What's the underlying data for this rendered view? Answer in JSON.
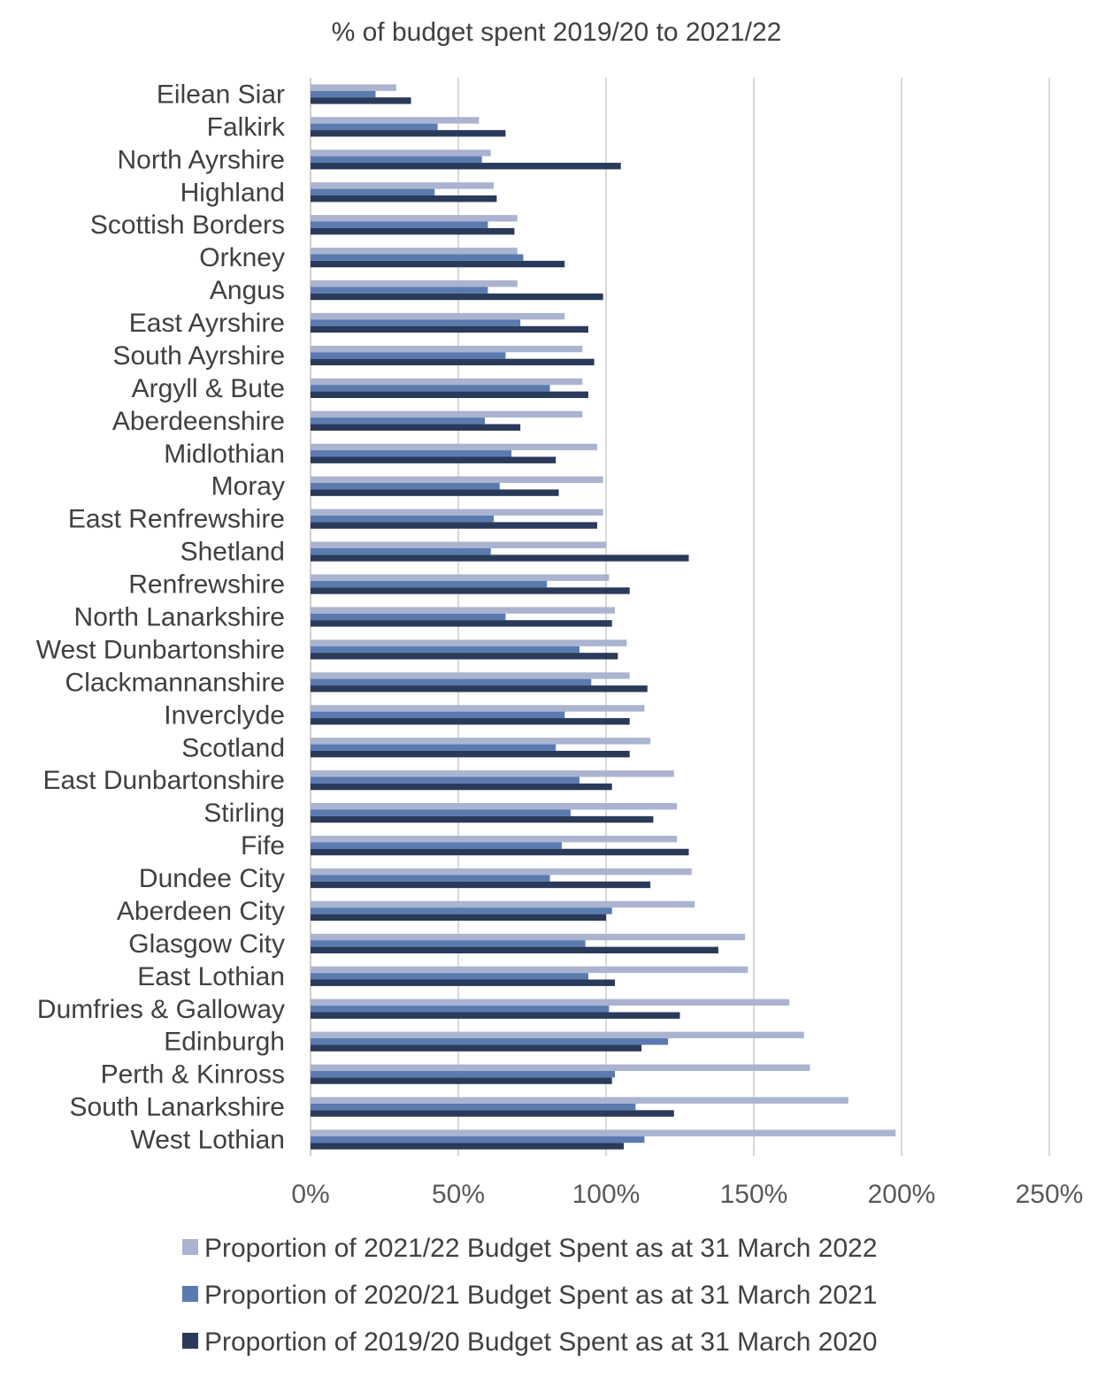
{
  "chart_data": {
    "type": "bar",
    "orientation": "horizontal",
    "title": "% of budget spent 2019/20 to 2021/22",
    "xlabel": "",
    "ylabel": "",
    "xlim": [
      0,
      2.5
    ],
    "x_ticks": [
      "0%",
      "50%",
      "100%",
      "150%",
      "200%",
      "250%"
    ],
    "grid": true,
    "legend_position": "bottom",
    "categories": [
      "Eilean Siar",
      "Falkirk",
      "North Ayrshire",
      "Highland",
      "Scottish Borders",
      "Orkney",
      "Angus",
      "East Ayrshire",
      "South Ayrshire",
      "Argyll & Bute",
      "Aberdeenshire",
      "Midlothian",
      "Moray",
      "East Renfrewshire",
      "Shetland",
      "Renfrewshire",
      "North Lanarkshire",
      "West Dunbartonshire",
      "Clackmannanshire",
      "Inverclyde",
      "Scotland",
      "East Dunbartonshire",
      "Stirling",
      "Fife",
      "Dundee City",
      "Aberdeen City",
      "Glasgow City",
      "East Lothian",
      "Dumfries & Galloway",
      "Edinburgh",
      "Perth & Kinross",
      "South Lanarkshire",
      "West Lothian"
    ],
    "series": [
      {
        "name": "Proportion of 2021/22 Budget Spent as at 31 March 2022",
        "color": "#aab4d0",
        "values": [
          0.29,
          0.57,
          0.61,
          0.62,
          0.7,
          0.7,
          0.7,
          0.86,
          0.92,
          0.92,
          0.92,
          0.97,
          0.99,
          0.99,
          1.0,
          1.01,
          1.03,
          1.07,
          1.08,
          1.13,
          1.15,
          1.23,
          1.24,
          1.24,
          1.29,
          1.3,
          1.47,
          1.48,
          1.62,
          1.67,
          1.69,
          1.82,
          1.98
        ]
      },
      {
        "name": "Proportion of 2020/21 Budget Spent as at 31 March 2021",
        "color": "#5b7bb0",
        "values": [
          0.22,
          0.43,
          0.58,
          0.42,
          0.6,
          0.72,
          0.6,
          0.71,
          0.66,
          0.81,
          0.59,
          0.68,
          0.64,
          0.62,
          0.61,
          0.8,
          0.66,
          0.91,
          0.95,
          0.86,
          0.83,
          0.91,
          0.88,
          0.85,
          0.81,
          1.02,
          0.93,
          0.94,
          1.01,
          1.21,
          1.03,
          1.1,
          1.13
        ]
      },
      {
        "name": "Proportion of 2019/20 Budget Spent as at 31 March 2020",
        "color": "#2a3a5a",
        "values": [
          0.34,
          0.66,
          1.05,
          0.63,
          0.69,
          0.86,
          0.99,
          0.94,
          0.96,
          0.94,
          0.71,
          0.83,
          0.84,
          0.97,
          1.28,
          1.08,
          1.02,
          1.04,
          1.14,
          1.08,
          1.08,
          1.02,
          1.16,
          1.28,
          1.15,
          1.0,
          1.38,
          1.03,
          1.25,
          1.12,
          1.02,
          1.23,
          1.06
        ]
      }
    ]
  }
}
